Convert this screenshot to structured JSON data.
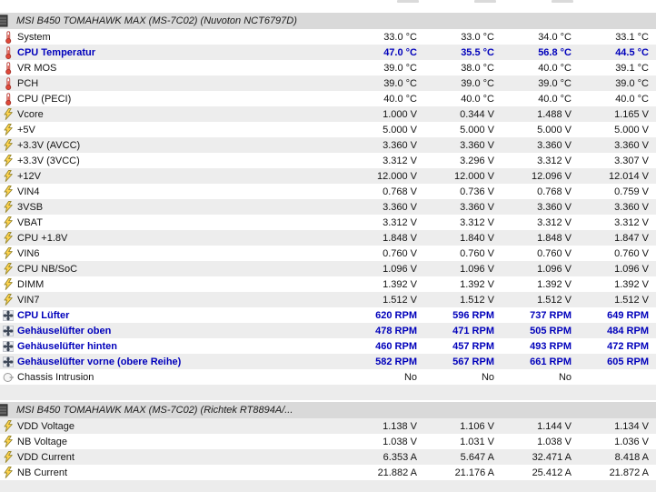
{
  "colors": {
    "highlight_text": "#0000bb",
    "row_stripe": "#ededed",
    "section_header_bg": "#d9d9d9",
    "normal_text": "#141414"
  },
  "sections": [
    {
      "title": "MSI B450 TOMAHAWK MAX (MS-7C02) (Nuvoton NCT6797D)",
      "rows": [
        {
          "label": "System",
          "icon": "thermometer-icon",
          "highlight": false,
          "values": [
            "33.0 °C",
            "33.0 °C",
            "34.0 °C",
            "33.1 °C"
          ]
        },
        {
          "label": "CPU Temperatur",
          "icon": "thermometer-icon",
          "highlight": true,
          "values": [
            "47.0 °C",
            "35.5 °C",
            "56.8 °C",
            "44.5 °C"
          ]
        },
        {
          "label": "VR MOS",
          "icon": "thermometer-icon",
          "highlight": false,
          "values": [
            "39.0 °C",
            "38.0 °C",
            "40.0 °C",
            "39.1 °C"
          ]
        },
        {
          "label": "PCH",
          "icon": "thermometer-icon",
          "highlight": false,
          "values": [
            "39.0 °C",
            "39.0 °C",
            "39.0 °C",
            "39.0 °C"
          ]
        },
        {
          "label": "CPU (PECI)",
          "icon": "thermometer-icon",
          "highlight": false,
          "values": [
            "40.0 °C",
            "40.0 °C",
            "40.0 °C",
            "40.0 °C"
          ]
        },
        {
          "label": "Vcore",
          "icon": "voltage-icon",
          "highlight": false,
          "values": [
            "1.000 V",
            "0.344 V",
            "1.488 V",
            "1.165 V"
          ]
        },
        {
          "label": "+5V",
          "icon": "voltage-icon",
          "highlight": false,
          "values": [
            "5.000 V",
            "5.000 V",
            "5.000 V",
            "5.000 V"
          ]
        },
        {
          "label": "+3.3V (AVCC)",
          "icon": "voltage-icon",
          "highlight": false,
          "values": [
            "3.360 V",
            "3.360 V",
            "3.360 V",
            "3.360 V"
          ]
        },
        {
          "label": "+3.3V (3VCC)",
          "icon": "voltage-icon",
          "highlight": false,
          "values": [
            "3.312 V",
            "3.296 V",
            "3.312 V",
            "3.307 V"
          ]
        },
        {
          "label": "+12V",
          "icon": "voltage-icon",
          "highlight": false,
          "values": [
            "12.000 V",
            "12.000 V",
            "12.096 V",
            "12.014 V"
          ]
        },
        {
          "label": "VIN4",
          "icon": "voltage-icon",
          "highlight": false,
          "values": [
            "0.768 V",
            "0.736 V",
            "0.768 V",
            "0.759 V"
          ]
        },
        {
          "label": "3VSB",
          "icon": "voltage-icon",
          "highlight": false,
          "values": [
            "3.360 V",
            "3.360 V",
            "3.360 V",
            "3.360 V"
          ]
        },
        {
          "label": "VBAT",
          "icon": "voltage-icon",
          "highlight": false,
          "values": [
            "3.312 V",
            "3.312 V",
            "3.312 V",
            "3.312 V"
          ]
        },
        {
          "label": "CPU +1.8V",
          "icon": "voltage-icon",
          "highlight": false,
          "values": [
            "1.848 V",
            "1.840 V",
            "1.848 V",
            "1.847 V"
          ]
        },
        {
          "label": "VIN6",
          "icon": "voltage-icon",
          "highlight": false,
          "values": [
            "0.760 V",
            "0.760 V",
            "0.760 V",
            "0.760 V"
          ]
        },
        {
          "label": "CPU NB/SoC",
          "icon": "voltage-icon",
          "highlight": false,
          "values": [
            "1.096 V",
            "1.096 V",
            "1.096 V",
            "1.096 V"
          ]
        },
        {
          "label": "DIMM",
          "icon": "voltage-icon",
          "highlight": false,
          "values": [
            "1.392 V",
            "1.392 V",
            "1.392 V",
            "1.392 V"
          ]
        },
        {
          "label": "VIN7",
          "icon": "voltage-icon",
          "highlight": false,
          "values": [
            "1.512 V",
            "1.512 V",
            "1.512 V",
            "1.512 V"
          ]
        },
        {
          "label": "CPU Lüfter",
          "icon": "fan-icon",
          "highlight": true,
          "values": [
            "620 RPM",
            "596 RPM",
            "737 RPM",
            "649 RPM"
          ]
        },
        {
          "label": "Gehäuselüfter oben",
          "icon": "fan-icon",
          "highlight": true,
          "values": [
            "478 RPM",
            "471 RPM",
            "505 RPM",
            "484 RPM"
          ]
        },
        {
          "label": "Gehäuselüfter hinten",
          "icon": "fan-icon",
          "highlight": true,
          "values": [
            "460 RPM",
            "457 RPM",
            "493 RPM",
            "472 RPM"
          ]
        },
        {
          "label": "Gehäuselüfter vorne (obere Reihe)",
          "icon": "fan-icon",
          "highlight": true,
          "values": [
            "582 RPM",
            "567 RPM",
            "661 RPM",
            "605 RPM"
          ]
        },
        {
          "label": "Chassis Intrusion",
          "icon": "intrusion-icon",
          "highlight": false,
          "values": [
            "No",
            "No",
            "No",
            ""
          ]
        }
      ]
    },
    {
      "title": "MSI B450 TOMAHAWK MAX (MS-7C02) (Richtek RT8894A/...",
      "rows": [
        {
          "label": "VDD Voltage",
          "icon": "voltage-icon",
          "highlight": false,
          "values": [
            "1.138 V",
            "1.106 V",
            "1.144 V",
            "1.134 V"
          ]
        },
        {
          "label": "NB Voltage",
          "icon": "voltage-icon",
          "highlight": false,
          "values": [
            "1.038 V",
            "1.031 V",
            "1.038 V",
            "1.036 V"
          ]
        },
        {
          "label": "VDD Current",
          "icon": "voltage-icon",
          "highlight": false,
          "values": [
            "6.353 A",
            "5.647 A",
            "32.471 A",
            "8.418 A"
          ]
        },
        {
          "label": "NB Current",
          "icon": "voltage-icon",
          "highlight": false,
          "values": [
            "21.882 A",
            "21.176 A",
            "25.412 A",
            "21.872 A"
          ]
        }
      ]
    }
  ]
}
